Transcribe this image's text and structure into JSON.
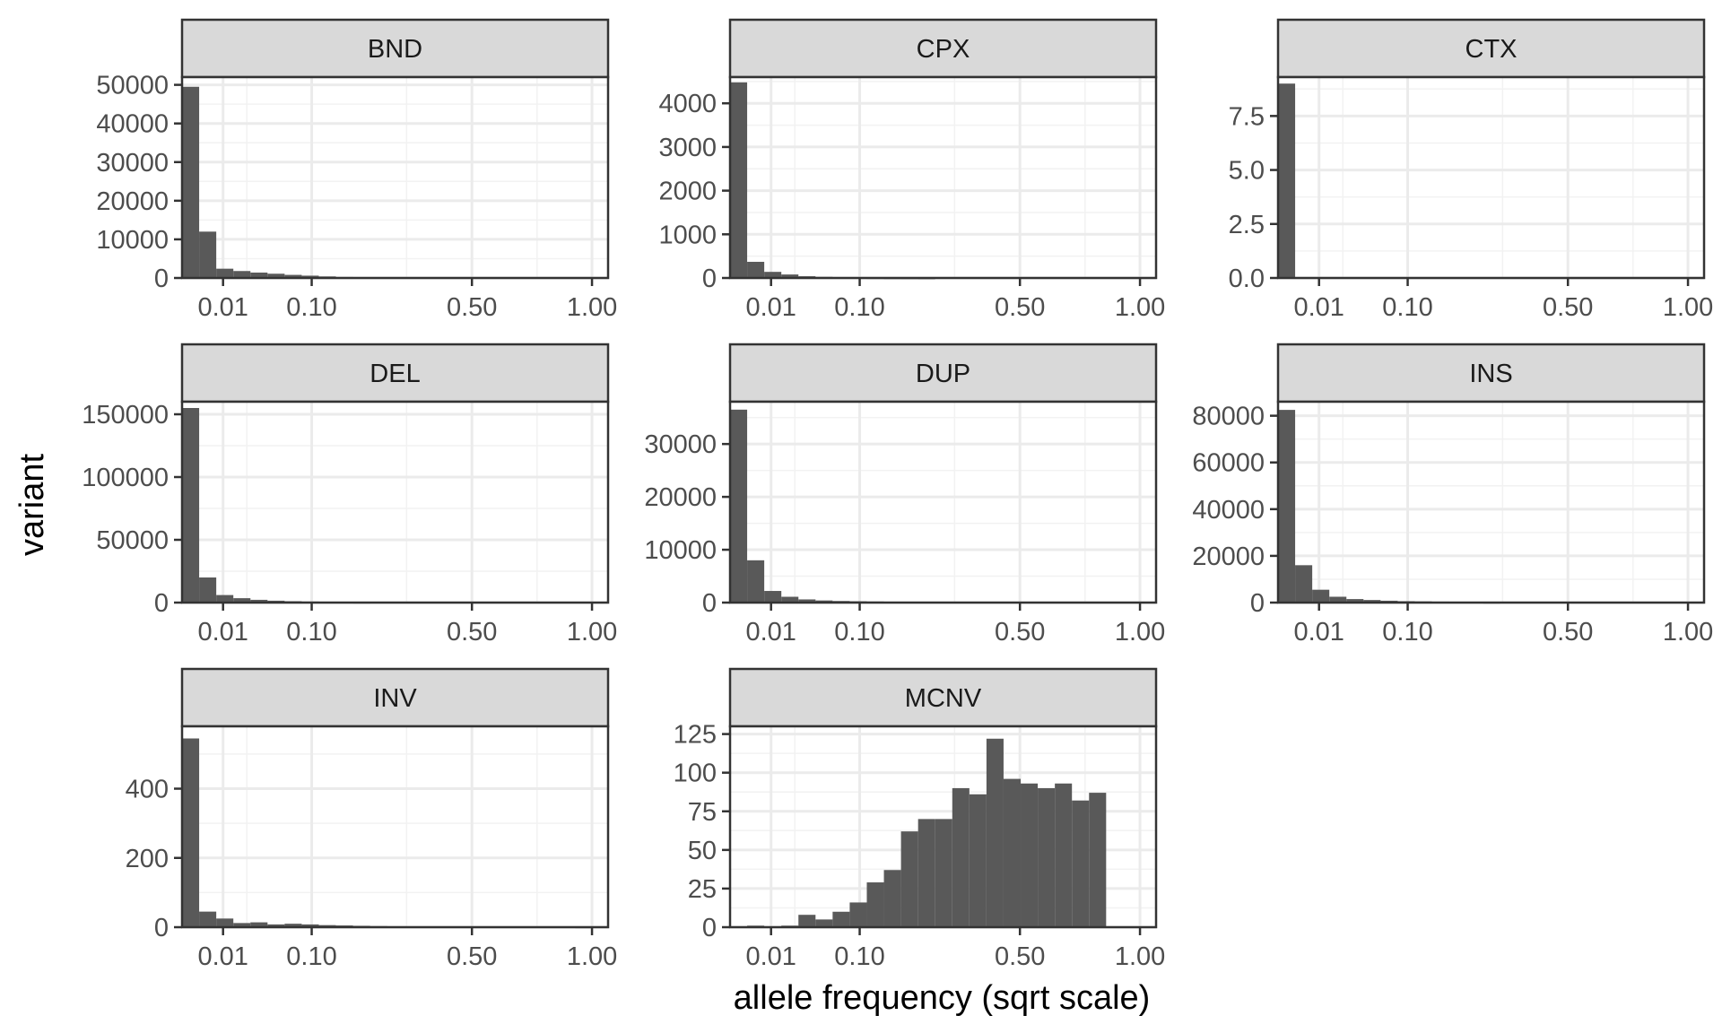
{
  "chart_data": {
    "type": "bar",
    "xlabel": "allele frequency (sqrt scale)",
    "ylabel": "variant",
    "x_scale": "sqrt",
    "xlim": [
      0,
      1.08
    ],
    "x_ticks": [
      0.01,
      0.1,
      0.5,
      1.0
    ],
    "x_tick_labels": [
      "0.01",
      "0.10",
      "0.50",
      "1.00"
    ],
    "bins": 25,
    "bin_width_sqrt": 0.0417,
    "grid": true,
    "facets": [
      {
        "name": "BND",
        "ylim": [
          0,
          52000
        ],
        "y_ticks": [
          0,
          10000,
          20000,
          30000,
          40000,
          50000
        ],
        "y_tick_labels": [
          "0",
          "10000",
          "20000",
          "30000",
          "40000",
          "50000"
        ],
        "values": [
          49500,
          12000,
          2400,
          1800,
          1400,
          1100,
          800,
          600,
          400,
          250,
          180,
          0,
          0,
          0,
          0,
          0,
          0,
          0,
          0,
          0,
          0,
          0,
          0,
          0,
          0
        ]
      },
      {
        "name": "CPX",
        "ylim": [
          0,
          4600
        ],
        "y_ticks": [
          0,
          1000,
          2000,
          3000,
          4000
        ],
        "y_tick_labels": [
          "0",
          "1000",
          "2000",
          "3000",
          "4000"
        ],
        "values": [
          4480,
          370,
          140,
          80,
          40,
          25,
          15,
          10,
          8,
          5,
          4,
          2,
          0,
          0,
          0,
          0,
          0,
          0,
          0,
          0,
          0,
          0,
          0,
          0,
          0
        ]
      },
      {
        "name": "CTX",
        "ylim": [
          0,
          9.3
        ],
        "y_ticks": [
          0,
          2.5,
          5,
          7.5
        ],
        "y_tick_labels": [
          "0.0",
          "2.5",
          "5.0",
          "7.5"
        ],
        "values": [
          9,
          0,
          0,
          0,
          0,
          0,
          0,
          0,
          0,
          0,
          0,
          0,
          0,
          0,
          0,
          0,
          0,
          0,
          0,
          0,
          0,
          0,
          0,
          0,
          0
        ]
      },
      {
        "name": "DEL",
        "ylim": [
          0,
          160000
        ],
        "y_ticks": [
          0,
          50000,
          100000,
          150000
        ],
        "y_tick_labels": [
          "0",
          "50000",
          "100000",
          "150000"
        ],
        "values": [
          155000,
          20000,
          6000,
          3500,
          2200,
          1500,
          1100,
          800,
          600,
          400,
          300,
          0,
          0,
          0,
          0,
          0,
          0,
          0,
          0,
          0,
          0,
          0,
          0,
          0,
          0
        ]
      },
      {
        "name": "DUP",
        "ylim": [
          0,
          38000
        ],
        "y_ticks": [
          0,
          10000,
          20000,
          30000
        ],
        "y_tick_labels": [
          "0",
          "10000",
          "20000",
          "30000"
        ],
        "values": [
          36500,
          8000,
          2200,
          1100,
          600,
          400,
          300,
          250,
          200,
          150,
          120,
          0,
          0,
          0,
          0,
          0,
          0,
          0,
          150,
          0,
          0,
          0,
          0,
          0,
          0
        ]
      },
      {
        "name": "INS",
        "ylim": [
          0,
          86000
        ],
        "y_ticks": [
          0,
          20000,
          40000,
          60000,
          80000
        ],
        "y_tick_labels": [
          "0",
          "20000",
          "40000",
          "60000",
          "80000"
        ],
        "values": [
          82500,
          16000,
          5500,
          2500,
          1500,
          1100,
          800,
          600,
          500,
          400,
          300,
          200,
          150,
          0,
          0,
          0,
          0,
          0,
          0,
          0,
          0,
          0,
          0,
          0,
          0
        ]
      },
      {
        "name": "INV",
        "ylim": [
          0,
          580
        ],
        "y_ticks": [
          0,
          200,
          400
        ],
        "y_tick_labels": [
          "0",
          "200",
          "400"
        ],
        "values": [
          545,
          45,
          25,
          12,
          14,
          8,
          10,
          8,
          6,
          5,
          4,
          3,
          2,
          2,
          2,
          2,
          2,
          2,
          2,
          0,
          0,
          0,
          0,
          1,
          0
        ]
      },
      {
        "name": "MCNV",
        "ylim": [
          0,
          130
        ],
        "y_ticks": [
          0,
          25,
          50,
          75,
          100,
          125
        ],
        "y_tick_labels": [
          "0",
          "25",
          "50",
          "75",
          "100",
          "125"
        ],
        "values": [
          0,
          1,
          0,
          1,
          8,
          5,
          10,
          16,
          29,
          37,
          62,
          70,
          70,
          90,
          86,
          122,
          96,
          93,
          90,
          93,
          82,
          87,
          0,
          0,
          0
        ]
      }
    ]
  }
}
